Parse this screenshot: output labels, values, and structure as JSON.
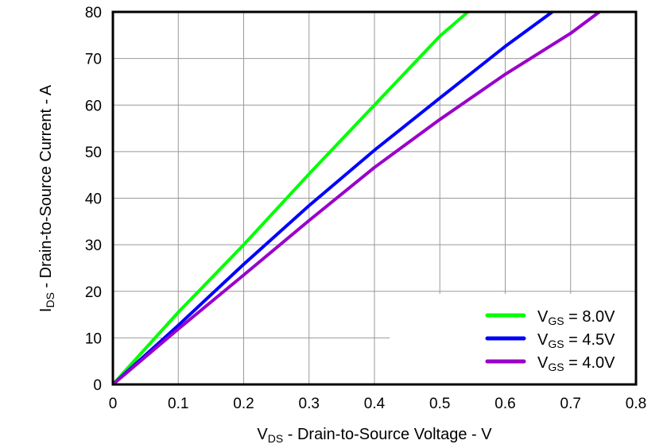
{
  "chart_data": {
    "type": "line",
    "title": "",
    "xlabel": {
      "main": "V",
      "sub": "DS",
      "rest": " - Drain-to-Source Voltage - V"
    },
    "ylabel": {
      "main": "I",
      "sub": "DS",
      "rest": " - Drain-to-Source Current - A"
    },
    "xlim": [
      0,
      0.8
    ],
    "ylim": [
      0,
      80
    ],
    "xticks": [
      "0",
      "0.1",
      "0.2",
      "0.3",
      "0.4",
      "0.5",
      "0.6",
      "0.7",
      "0.8"
    ],
    "yticks": [
      "0",
      "10",
      "20",
      "30",
      "40",
      "50",
      "60",
      "70",
      "80"
    ],
    "grid": true,
    "legend_position": "bottom-right",
    "series": [
      {
        "name": {
          "main": "V",
          "sub": "GS",
          "rest": " = 8.0V"
        },
        "color": "#00ff00",
        "x": [
          0,
          0.1,
          0.2,
          0.3,
          0.4,
          0.5,
          0.543
        ],
        "y": [
          0,
          15.5,
          30,
          45.2,
          60,
          74.8,
          80
        ]
      },
      {
        "name": {
          "main": "V",
          "sub": "GS",
          "rest": " = 4.5V"
        },
        "color": "#0000ff",
        "x": [
          0,
          0.1,
          0.2,
          0.3,
          0.4,
          0.5,
          0.6,
          0.672
        ],
        "y": [
          0,
          12.7,
          25.8,
          38.4,
          50.3,
          61.5,
          72.6,
          80
        ]
      },
      {
        "name": {
          "main": "V",
          "sub": "GS",
          "rest": " = 4.0V"
        },
        "color": "#9900cc",
        "x": [
          0,
          0.1,
          0.2,
          0.3,
          0.4,
          0.5,
          0.6,
          0.7,
          0.744
        ],
        "y": [
          0,
          11.9,
          23.5,
          35.2,
          46.6,
          56.9,
          66.6,
          75.4,
          80
        ]
      }
    ]
  }
}
